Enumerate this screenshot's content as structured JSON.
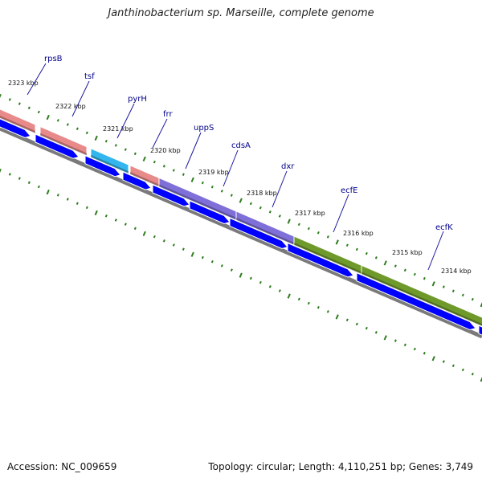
{
  "title": "Janthinobacterium sp. Marseille, complete genome",
  "footer": {
    "accession": "Accession: NC_009659",
    "summary": "Topology: circular; Length: 4,110,251 bp; Genes: 3,749"
  },
  "colors": {
    "backbone": "#7a7a7a",
    "cds_arrow": "#0000ff",
    "tick": "#2e7d1e",
    "gene_label": "#00008b",
    "label_line": "#1a1aa0"
  },
  "kbp_ticks": [
    "2323 kbp",
    "2322 kbp",
    "2321 kbp",
    "2320 kbp",
    "2319 kbp",
    "2318 kbp",
    "2317 kbp",
    "2316 kbp",
    "2315 kbp",
    "2314 kbp"
  ],
  "genes": [
    {
      "name": "rpsB",
      "color": "#e98a8a"
    },
    {
      "name": "tsf",
      "color": "#e98a8a"
    },
    {
      "name": "pyrH",
      "color": "#33b6ee"
    },
    {
      "name": "frr",
      "color": "#e98a8a"
    },
    {
      "name": "uppS",
      "color": "#7f6fd8"
    },
    {
      "name": "cdsA",
      "color": "#7f6fd8"
    },
    {
      "name": "dxr",
      "color": "#7f6fd8"
    },
    {
      "name": "ecfE",
      "color": "#6f9a2b"
    },
    {
      "name": "ecfK",
      "color": "#6f9a2b"
    }
  ]
}
